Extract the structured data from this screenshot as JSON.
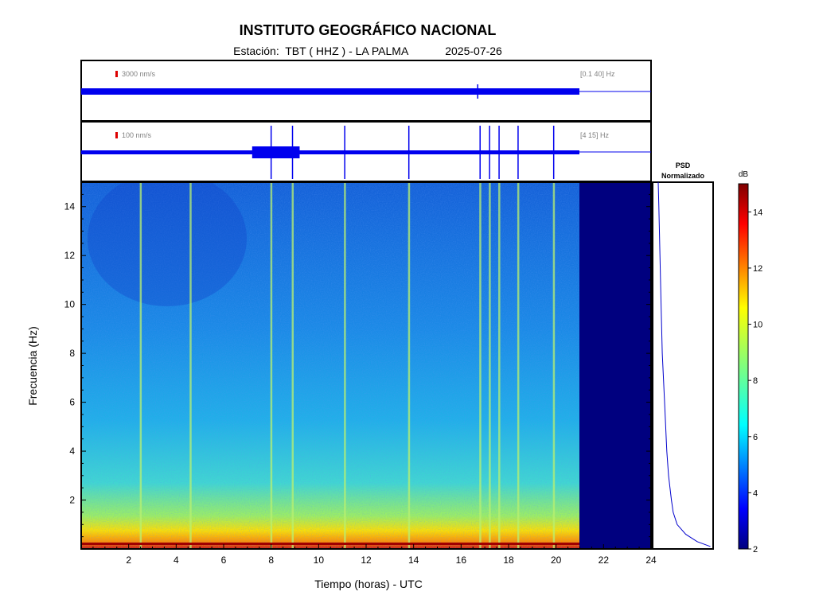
{
  "header": {
    "title": "INSTITUTO GEOGRÁFICO NACIONAL",
    "station_label": "Estación:",
    "station": "TBT ( HHZ ) - LA PALMA",
    "date": "2025-07-26"
  },
  "chart_data": [
    {
      "type": "line",
      "name": "seismogram-broadband",
      "scale_label": "3000 nm/s",
      "filter_label": "[0.1 40] Hz",
      "x_unit": "hours UTC",
      "xlim": [
        0,
        24
      ],
      "data_end_hour": 21.0,
      "events_hours": [
        16.7
      ]
    },
    {
      "type": "line",
      "name": "seismogram-filtered",
      "scale_label": "100 nm/s",
      "filter_label": "[4 15] Hz",
      "x_unit": "hours UTC",
      "xlim": [
        0,
        24
      ],
      "data_end_hour": 21.0,
      "events_hours": [
        8.0,
        8.9,
        11.1,
        13.8,
        16.8,
        17.2,
        17.6,
        18.4,
        19.9
      ]
    },
    {
      "type": "heatmap",
      "name": "spectrogram",
      "xlabel": "Tiempo (horas) - UTC",
      "ylabel": "Frecuencia  (Hz)",
      "xlim": [
        0,
        24
      ],
      "ylim": [
        0,
        15
      ],
      "xticks": [
        2,
        4,
        6,
        8,
        10,
        12,
        14,
        16,
        18,
        20,
        22,
        24
      ],
      "yticks": [
        2,
        4,
        6,
        8,
        10,
        12,
        14
      ],
      "data_end_hour": 21.0,
      "vertical_event_lines_hours": [
        2.5,
        4.6,
        8.0,
        8.9,
        11.1,
        13.8,
        16.8,
        17.2,
        17.6,
        18.4,
        19.9
      ],
      "low_freq_band_hz": [
        0,
        1.0
      ],
      "colormap": "jet"
    },
    {
      "type": "line",
      "name": "psd",
      "title_line1": "PSD",
      "title_line2": "Normalizado",
      "ylim": [
        0,
        15
      ],
      "profile": [
        {
          "f": 0.1,
          "v": 0.98
        },
        {
          "f": 0.3,
          "v": 0.75
        },
        {
          "f": 0.6,
          "v": 0.55
        },
        {
          "f": 1.0,
          "v": 0.4
        },
        {
          "f": 1.5,
          "v": 0.33
        },
        {
          "f": 2.0,
          "v": 0.3
        },
        {
          "f": 3.0,
          "v": 0.25
        },
        {
          "f": 4.0,
          "v": 0.22
        },
        {
          "f": 6.0,
          "v": 0.18
        },
        {
          "f": 8.0,
          "v": 0.14
        },
        {
          "f": 10.0,
          "v": 0.12
        },
        {
          "f": 12.0,
          "v": 0.1
        },
        {
          "f": 14.0,
          "v": 0.08
        },
        {
          "f": 15.0,
          "v": 0.07
        }
      ]
    },
    {
      "type": "heatmap",
      "name": "colorbar",
      "label": "dB",
      "ylim": [
        2,
        15
      ],
      "ticks": [
        2,
        4,
        6,
        8,
        10,
        12,
        14
      ],
      "colormap": "jet"
    }
  ],
  "colors": {
    "trace": "#0000ee",
    "scale_marker": "#dd0000",
    "background_empty": "#00007f",
    "label_gray": "#808080"
  }
}
